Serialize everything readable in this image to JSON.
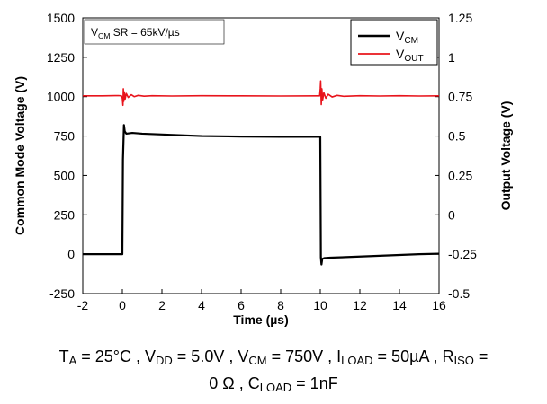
{
  "chart_data": {
    "type": "line",
    "x_axis": {
      "title": "Time (µs)",
      "range": [
        -2,
        16
      ],
      "ticks": [
        -2,
        0,
        2,
        4,
        6,
        8,
        10,
        12,
        14,
        16
      ]
    },
    "y_left": {
      "title": "Common Mode Voltage (V)",
      "range": [
        -250,
        1500
      ],
      "ticks": [
        -250,
        0,
        250,
        500,
        750,
        1000,
        1250,
        1500
      ]
    },
    "y_right": {
      "title": "Output Voltage (V)",
      "range": [
        -0.5,
        1.25
      ],
      "ticks": [
        -0.5,
        -0.25,
        0,
        0.25,
        0.5,
        0.75,
        1,
        1.25
      ],
      "tick_labels": [
        "-0.5",
        "-0.25",
        "0",
        "0.25",
        "0.5",
        "0.75",
        "1",
        "1.25"
      ]
    },
    "annotation": {
      "base": "V",
      "sub": "CM",
      "rest": " SR = 65kV/µs"
    },
    "legend_position": "top-right",
    "grid": false,
    "series": [
      {
        "name_base": "V",
        "name_sub": "CM",
        "axis": "left",
        "color": "#000000",
        "points": [
          [
            -2,
            0
          ],
          [
            -0.05,
            0
          ],
          [
            0,
            0
          ],
          [
            0.03,
            600
          ],
          [
            0.08,
            820
          ],
          [
            0.12,
            780
          ],
          [
            0.2,
            765
          ],
          [
            0.5,
            770
          ],
          [
            1,
            765
          ],
          [
            2,
            760
          ],
          [
            3,
            755
          ],
          [
            4,
            750
          ],
          [
            6,
            747
          ],
          [
            8,
            745
          ],
          [
            9.5,
            745
          ],
          [
            9.98,
            745
          ],
          [
            10.0,
            745
          ],
          [
            10.03,
            -20
          ],
          [
            10.06,
            -65
          ],
          [
            10.1,
            -30
          ],
          [
            10.2,
            -25
          ],
          [
            10.5,
            -22
          ],
          [
            11,
            -20
          ],
          [
            12,
            -15
          ],
          [
            13,
            -10
          ],
          [
            14,
            -5
          ],
          [
            15,
            0
          ],
          [
            16,
            3
          ]
        ]
      },
      {
        "name_base": "V",
        "name_sub": "OUT",
        "axis": "right",
        "color": "#e8141c",
        "points": [
          [
            -2,
            0.755
          ],
          [
            -1,
            0.755
          ],
          [
            -0.2,
            0.757
          ],
          [
            -0.05,
            0.755
          ],
          [
            0,
            0.74
          ],
          [
            0.03,
            0.695
          ],
          [
            0.05,
            0.8
          ],
          [
            0.07,
            0.72
          ],
          [
            0.1,
            0.78
          ],
          [
            0.14,
            0.735
          ],
          [
            0.2,
            0.77
          ],
          [
            0.3,
            0.745
          ],
          [
            0.45,
            0.762
          ],
          [
            0.6,
            0.75
          ],
          [
            0.8,
            0.758
          ],
          [
            1.1,
            0.753
          ],
          [
            1.5,
            0.756
          ],
          [
            2.5,
            0.754
          ],
          [
            4,
            0.756
          ],
          [
            6,
            0.755
          ],
          [
            8,
            0.754
          ],
          [
            9.9,
            0.755
          ],
          [
            9.97,
            0.755
          ],
          [
            10.0,
            0.8
          ],
          [
            10.02,
            0.85
          ],
          [
            10.05,
            0.7
          ],
          [
            10.08,
            0.8
          ],
          [
            10.12,
            0.73
          ],
          [
            10.18,
            0.775
          ],
          [
            10.28,
            0.74
          ],
          [
            10.4,
            0.765
          ],
          [
            10.6,
            0.748
          ],
          [
            10.85,
            0.758
          ],
          [
            11.2,
            0.752
          ],
          [
            12,
            0.756
          ],
          [
            13,
            0.754
          ],
          [
            14,
            0.756
          ],
          [
            15,
            0.754
          ],
          [
            16,
            0.755
          ]
        ]
      }
    ],
    "caption": [
      {
        "text": "T"
      },
      {
        "sub": "A"
      },
      {
        "text": " = 25°C , V"
      },
      {
        "sub": "DD"
      },
      {
        "text": " = 5.0V , V"
      },
      {
        "sub": "CM"
      },
      {
        "text": " = 750V , I"
      },
      {
        "sub": "LOAD"
      },
      {
        "text": " = 50µA , R"
      },
      {
        "sub": "ISO"
      },
      {
        "text": " ="
      },
      {
        "br": true
      },
      {
        "text": "0 Ω , C"
      },
      {
        "sub": "LOAD"
      },
      {
        "text": " = 1nF"
      }
    ]
  }
}
